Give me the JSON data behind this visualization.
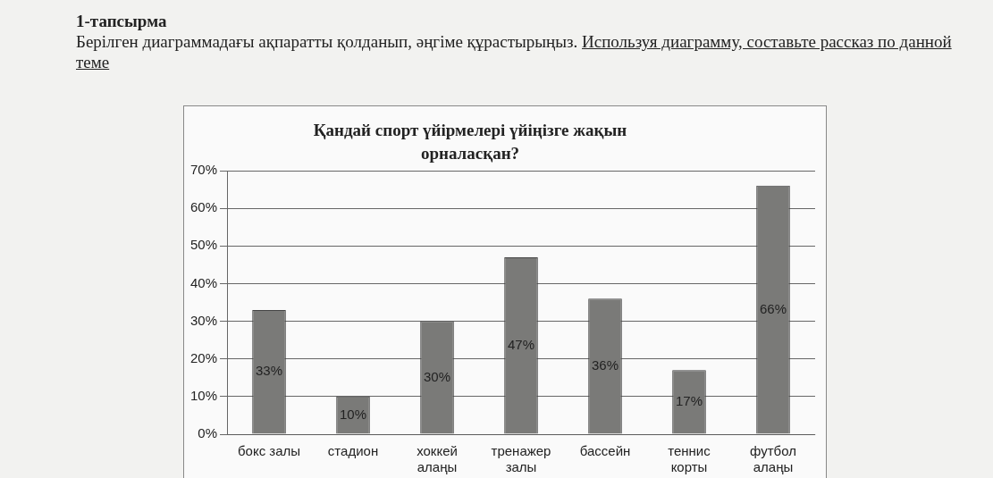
{
  "chart_data": {
    "type": "bar",
    "title": "Қандай спорт үйірмелері үйіңізге жақын орналасқан?",
    "categories": [
      "бокс залы",
      "стадион",
      "хоккей алаңы",
      "тренажер залы",
      "бассейн",
      "теннис корты",
      "футбол алаңы"
    ],
    "values": [
      33,
      10,
      30,
      47,
      36,
      17,
      66
    ],
    "color": "#7a7a78",
    "value_labels": [
      "33%",
      "10%",
      "30%",
      "47%",
      "36%",
      "17%",
      "66%"
    ],
    "ylim": [
      0,
      70
    ],
    "yticks": [
      {
        "value": 0,
        "label": "0%"
      },
      {
        "value": 10,
        "label": "10%"
      },
      {
        "value": 20,
        "label": "20%"
      },
      {
        "value": 30,
        "label": "30%"
      },
      {
        "value": 40,
        "label": "40%"
      },
      {
        "value": 50,
        "label": "50%"
      },
      {
        "value": 60,
        "label": "60%"
      },
      {
        "value": 70,
        "label": "70%"
      }
    ],
    "grid": "y",
    "legend": false,
    "annotations": [
      "1-тапсырма",
      "Берілген диаграммадағы ақпаратты қолданып, әңгіме құрастырыңыз.",
      "Используя диаграмму, составьте рассказ по данной теме"
    ]
  }
}
